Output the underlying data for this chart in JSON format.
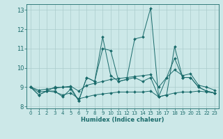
{
  "xlabel": "Humidex (Indice chaleur)",
  "bg_color": "#cce8e8",
  "grid_color": "#aacccc",
  "line_color": "#1a6b6b",
  "xlim": [
    -0.5,
    23.5
  ],
  "ylim": [
    7.9,
    13.3
  ],
  "yticks": [
    8,
    9,
    10,
    11,
    12,
    13
  ],
  "xticks": [
    0,
    1,
    2,
    3,
    4,
    5,
    6,
    7,
    8,
    9,
    10,
    11,
    12,
    13,
    14,
    15,
    16,
    17,
    18,
    19,
    20,
    21,
    22,
    23
  ],
  "series": [
    {
      "x": [
        0,
        1,
        2,
        3,
        4,
        5,
        6,
        7,
        8,
        9,
        10,
        11,
        12,
        13,
        14,
        15,
        16,
        17,
        18,
        19,
        20,
        21,
        22,
        23
      ],
      "y": [
        9.0,
        8.6,
        8.8,
        9.0,
        9.0,
        9.0,
        8.3,
        9.5,
        9.3,
        11.6,
        9.6,
        9.3,
        9.4,
        11.5,
        11.6,
        13.1,
        8.5,
        8.6,
        11.1,
        9.5,
        9.5,
        9.0,
        8.8,
        8.7
      ]
    },
    {
      "x": [
        0,
        1,
        2,
        3,
        4,
        5,
        6,
        7,
        8,
        9,
        10,
        11,
        12,
        13,
        14,
        15,
        16,
        17,
        18,
        19,
        20,
        21,
        22,
        23
      ],
      "y": [
        9.0,
        8.6,
        8.8,
        8.8,
        8.5,
        8.9,
        8.3,
        9.5,
        9.3,
        11.0,
        10.9,
        9.3,
        9.4,
        9.5,
        9.3,
        9.5,
        8.5,
        9.5,
        10.5,
        9.5,
        9.5,
        9.0,
        8.8,
        8.7
      ]
    },
    {
      "x": [
        0,
        1,
        2,
        3,
        4,
        5,
        6,
        7,
        8,
        9,
        10,
        11,
        12,
        13,
        14,
        15,
        16,
        17,
        18,
        19,
        20,
        21,
        22,
        23
      ],
      "y": [
        9.0,
        8.85,
        8.9,
        8.95,
        9.0,
        9.05,
        8.8,
        9.1,
        9.2,
        9.3,
        9.4,
        9.45,
        9.5,
        9.55,
        9.6,
        9.65,
        9.0,
        9.5,
        9.9,
        9.6,
        9.7,
        9.1,
        9.0,
        8.85
      ]
    },
    {
      "x": [
        0,
        1,
        2,
        3,
        4,
        5,
        6,
        7,
        8,
        9,
        10,
        11,
        12,
        13,
        14,
        15,
        16,
        17,
        18,
        19,
        20,
        21,
        22,
        23
      ],
      "y": [
        9.0,
        8.75,
        8.8,
        8.75,
        8.6,
        8.7,
        8.4,
        8.5,
        8.6,
        8.65,
        8.7,
        8.75,
        8.75,
        8.75,
        8.75,
        8.8,
        8.5,
        8.6,
        8.7,
        8.75,
        8.75,
        8.8,
        8.75,
        8.7
      ]
    }
  ]
}
